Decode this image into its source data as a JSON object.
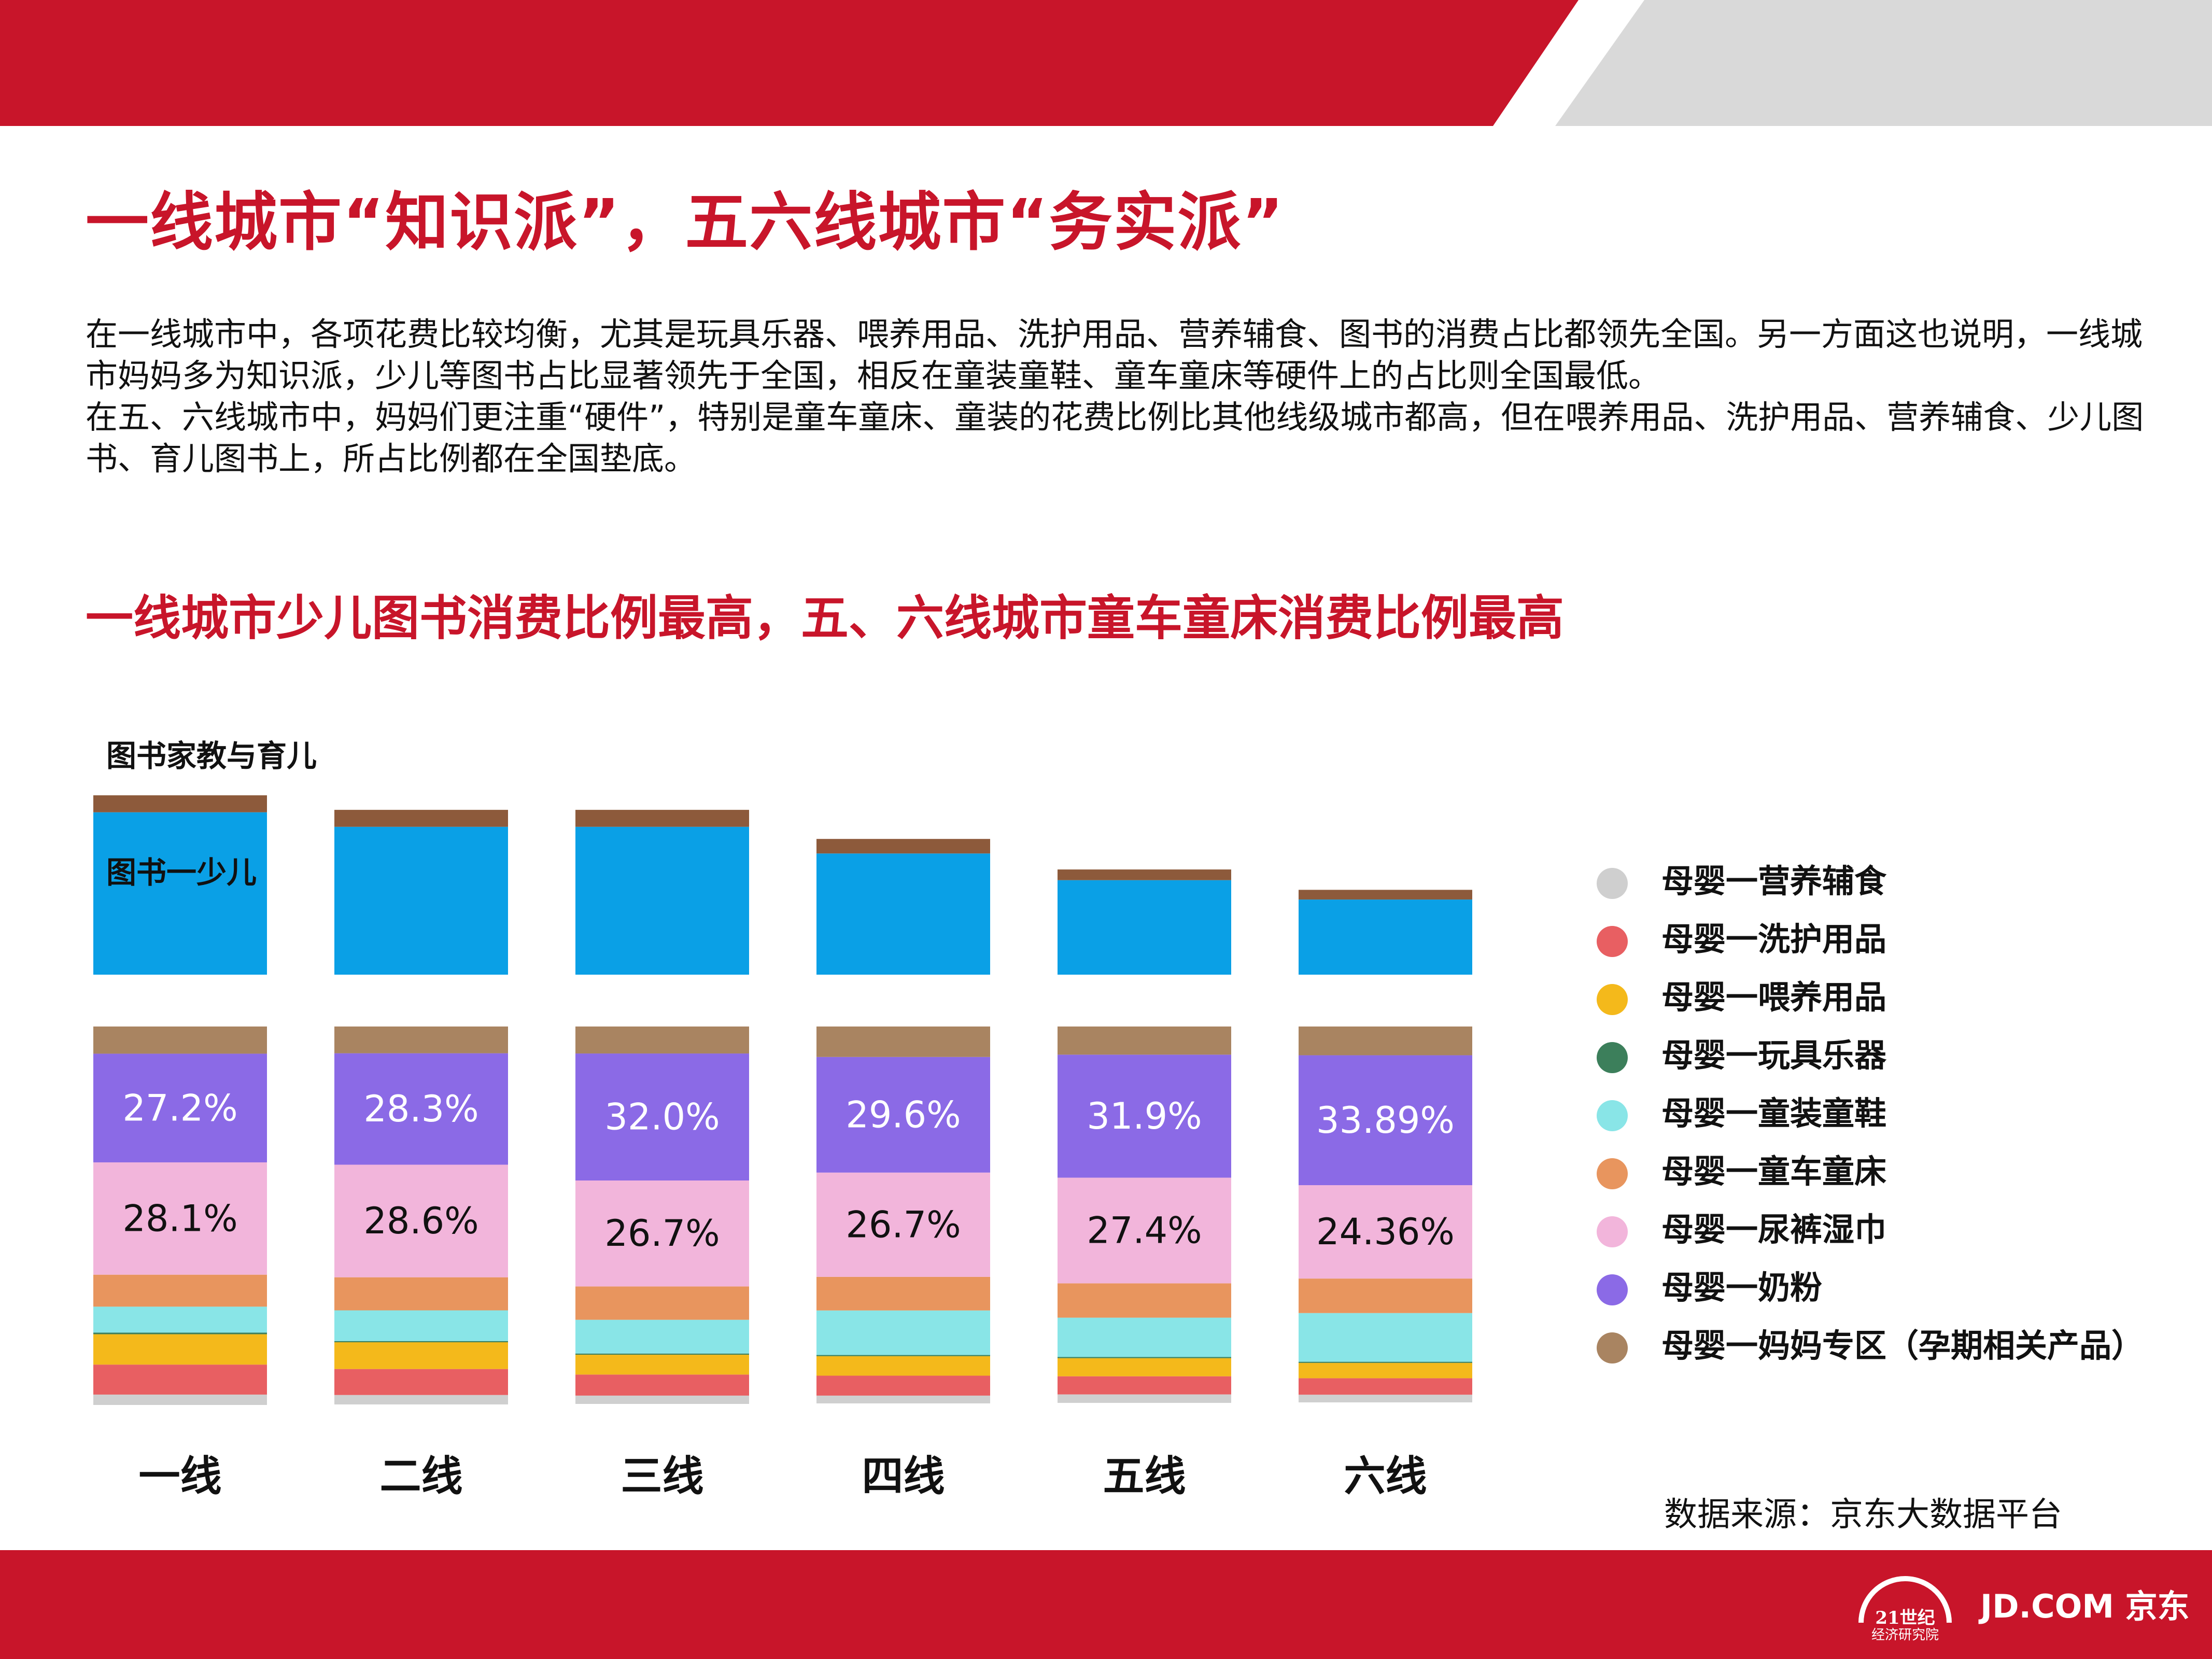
{
  "colors": {
    "brand_red": "#c8152a",
    "header_gray": "#d9d9d9",
    "book_young": "#0aa0e6",
    "book_parenting": "#8d5a3b"
  },
  "title": "一线城市“知识派”，五六线城市“务实派”",
  "description": [
    "在一线城市中，各项花费比较均衡，尤其是玩具乐器、喂养用品、洗护用品、营养辅食、图书的消费占比都领先全国。另一方面这也说明，一线城市妈妈多为知识派，少儿等图书占比显著领先于全国，相反在童装童鞋、童车童床等硬件上的占比则全国最低。",
    "在五、六线城市中，妈妈们更注重“硬件”，特别是童车童床、童装的花费比例比其他线级城市都高，但在喂养用品、洗护用品、营养辅食、少儿图书、育儿图书上，所占比例都在全国垫底。"
  ],
  "subtitle": "一线城市少儿图书消费比例最高，五、六线城市童车童床消费比例最高",
  "chart_data": {
    "type": "stacked_bar",
    "categories": [
      "一线",
      "二线",
      "三线",
      "四线",
      "五线",
      "六线"
    ],
    "book_chart": {
      "series_labels": {
        "parenting": "图书家教与育儿",
        "young": "图书一少儿"
      },
      "series": [
        {
          "name": "图书一少儿",
          "color": "#0aa0e6",
          "values": [
            33.5,
            30.5,
            30.5,
            25.0,
            19.5,
            15.5
          ]
        },
        {
          "name": "图书家教与育儿",
          "color": "#8d5a3b",
          "values": [
            3.5,
            3.5,
            3.5,
            3.0,
            2.2,
            2.0
          ]
        }
      ],
      "ylim": [
        0,
        37
      ]
    },
    "baby_chart": {
      "series": [
        {
          "name": "母婴一营养辅食",
          "color": "#cfcfcf",
          "values": [
            2.6,
            2.4,
            2.1,
            2.0,
            2.2,
            2.0
          ]
        },
        {
          "name": "母婴一洗护用品",
          "color": "#e85f62",
          "values": [
            7.5,
            6.6,
            5.3,
            5.1,
            4.7,
            4.3
          ]
        },
        {
          "name": "母婴一喂养用品",
          "color": "#f4b91b",
          "values": [
            7.6,
            6.8,
            5.0,
            5.0,
            4.7,
            4.0
          ]
        },
        {
          "name": "母婴一玩具乐器",
          "color": "#3c7f5b",
          "values": [
            0.4,
            0.3,
            0.3,
            0.3,
            0.3,
            0.3
          ]
        },
        {
          "name": "母婴一童装童鞋",
          "color": "#89e5e7",
          "values": [
            6.5,
            7.8,
            8.5,
            11.4,
            10.2,
            12.7
          ]
        },
        {
          "name": "母婴一童车童床",
          "color": "#e8955e",
          "values": [
            8.0,
            8.4,
            8.4,
            8.6,
            8.9,
            9.0
          ]
        },
        {
          "name": "母婴一尿裤湿巾",
          "color": "#f2b5db",
          "values": [
            28.1,
            28.6,
            26.7,
            26.7,
            27.4,
            24.36
          ]
        },
        {
          "name": "母婴一奶粉",
          "color": "#8b6ae6",
          "values": [
            27.2,
            28.3,
            32.0,
            29.6,
            31.9,
            33.89
          ]
        },
        {
          "name": "母婴一妈妈专区（孕期相关产品）",
          "color": "#a98461",
          "values": [
            6.8,
            6.8,
            6.8,
            7.8,
            7.3,
            7.5
          ]
        }
      ],
      "data_labels": {
        "奶粉": [
          "27.2%",
          "28.3%",
          "32.0%",
          "29.6%",
          "31.9%",
          "33.89%"
        ],
        "尿裤湿巾": [
          "28.1%",
          "28.6%",
          "26.7%",
          "26.7%",
          "27.4%",
          "24.36%"
        ]
      },
      "ylim": [
        0,
        100
      ]
    },
    "legend": [
      {
        "label": "母婴一营养辅食",
        "color": "#cfcfcf"
      },
      {
        "label": "母婴一洗护用品",
        "color": "#e85f62"
      },
      {
        "label": "母婴一喂养用品",
        "color": "#f4b91b"
      },
      {
        "label": "母婴一玩具乐器",
        "color": "#3c7f5b"
      },
      {
        "label": "母婴一童装童鞋",
        "color": "#89e5e7"
      },
      {
        "label": "母婴一童车童床",
        "color": "#e8955e"
      },
      {
        "label": "母婴一尿裤湿巾",
        "color": "#f2b5db"
      },
      {
        "label": "母婴一奶粉",
        "color": "#8b6ae6"
      },
      {
        "label": "母婴一妈妈专区（孕期相关产品）",
        "color": "#a98461"
      }
    ]
  },
  "source": "数据来源：京东大数据平台",
  "footer": {
    "logo_21_top": "21世纪",
    "logo_21_bottom": "经济研究院",
    "jd_brand": "JD.COM 京东"
  }
}
